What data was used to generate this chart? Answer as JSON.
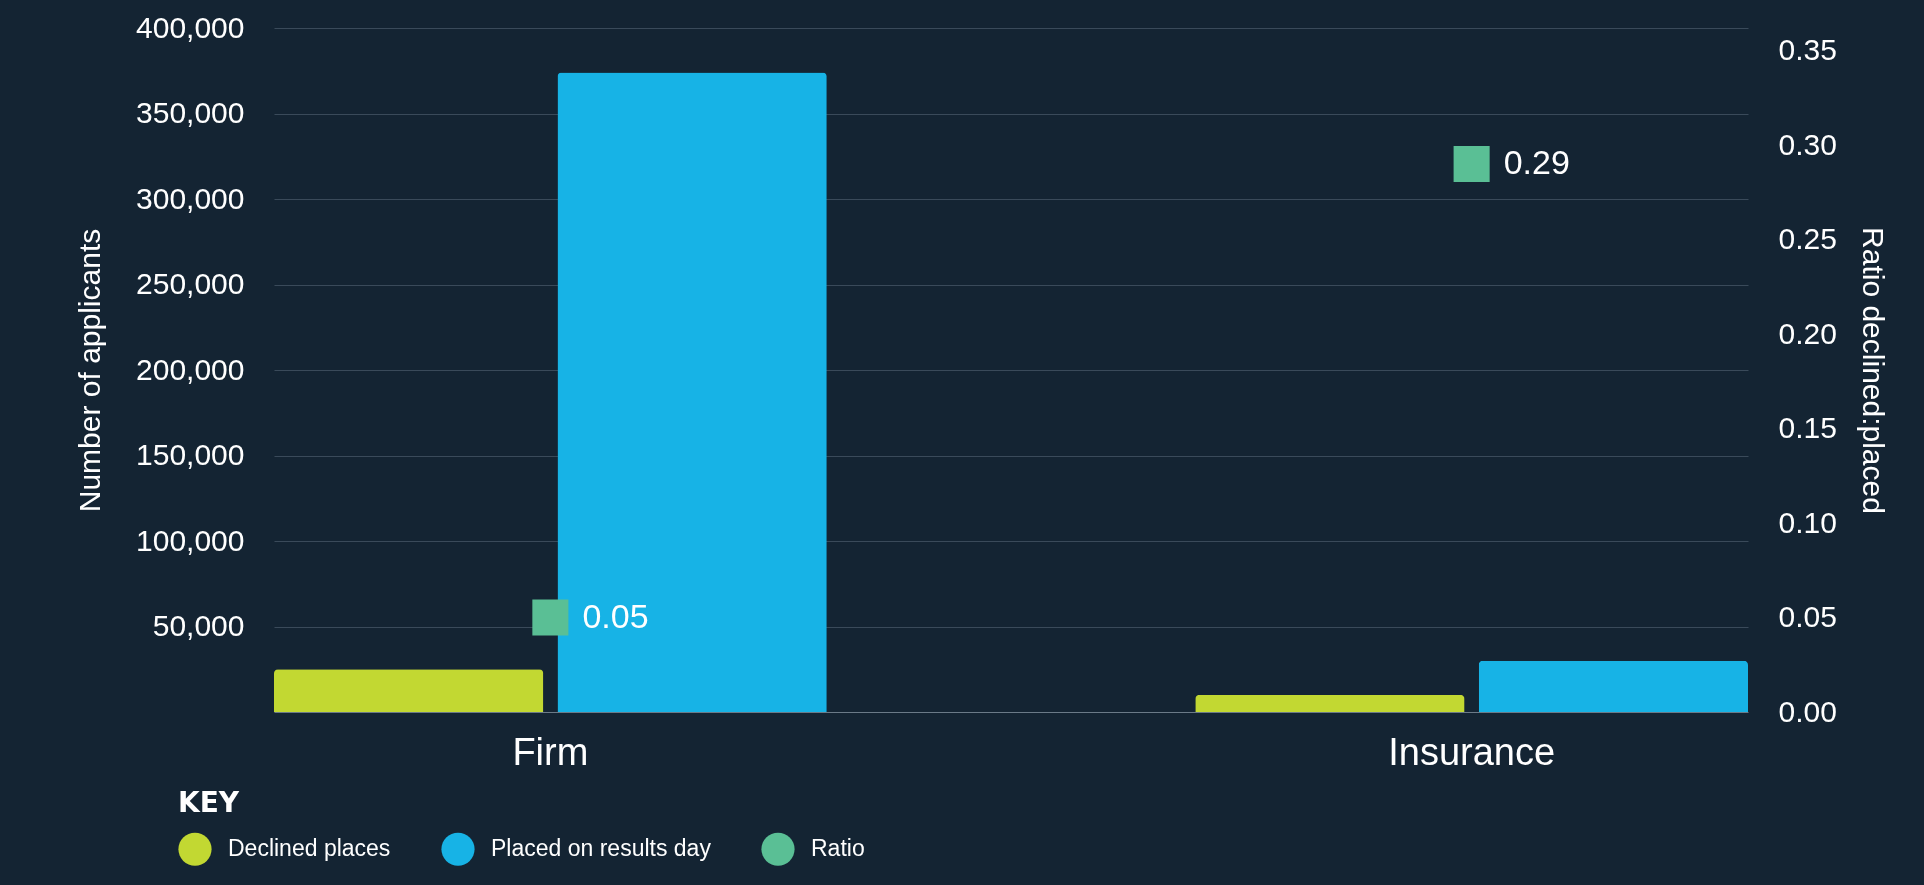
{
  "chart_data": {
    "type": "bar",
    "categories": [
      "Firm",
      "Insurance"
    ],
    "series": [
      {
        "name": "Declined places",
        "color": "#c2d832",
        "values": [
          25000,
          10000
        ]
      },
      {
        "name": "Placed on results day",
        "color": "#17b3e6",
        "values": [
          374000,
          30000
        ]
      },
      {
        "name": "Ratio",
        "color": "#5abf95",
        "type": "scatter",
        "axis": "y2",
        "marker": "square",
        "values": [
          0.05,
          0.29
        ],
        "value_labels": [
          "0.05",
          "0.29"
        ]
      }
    ],
    "ylabel": "Number of applicants",
    "y2label": "Ratio declined:placed",
    "ylim": [
      0,
      400000
    ],
    "yticks": [
      {
        "value": 50000,
        "label": "50,000"
      },
      {
        "value": 100000,
        "label": "100,000"
      },
      {
        "value": 150000,
        "label": "150,000"
      },
      {
        "value": 200000,
        "label": "200,000"
      },
      {
        "value": 250000,
        "label": "250,000"
      },
      {
        "value": 300000,
        "label": "300,000"
      },
      {
        "value": 350000,
        "label": "350,000"
      },
      {
        "value": 400000,
        "label": "400,000"
      }
    ],
    "y2lim": [
      0,
      0.362
    ],
    "y2ticks": [
      {
        "value": 0,
        "label": "0.00"
      },
      0.05,
      {
        "value": 0.1,
        "label": "0.10"
      },
      0.15,
      {
        "value": 0.2,
        "label": "0.20"
      },
      0.25,
      {
        "value": 0.3,
        "label": "0.30"
      },
      0.35
    ],
    "grid": "y",
    "legend": "bottom left",
    "legend_title": "KEY"
  }
}
